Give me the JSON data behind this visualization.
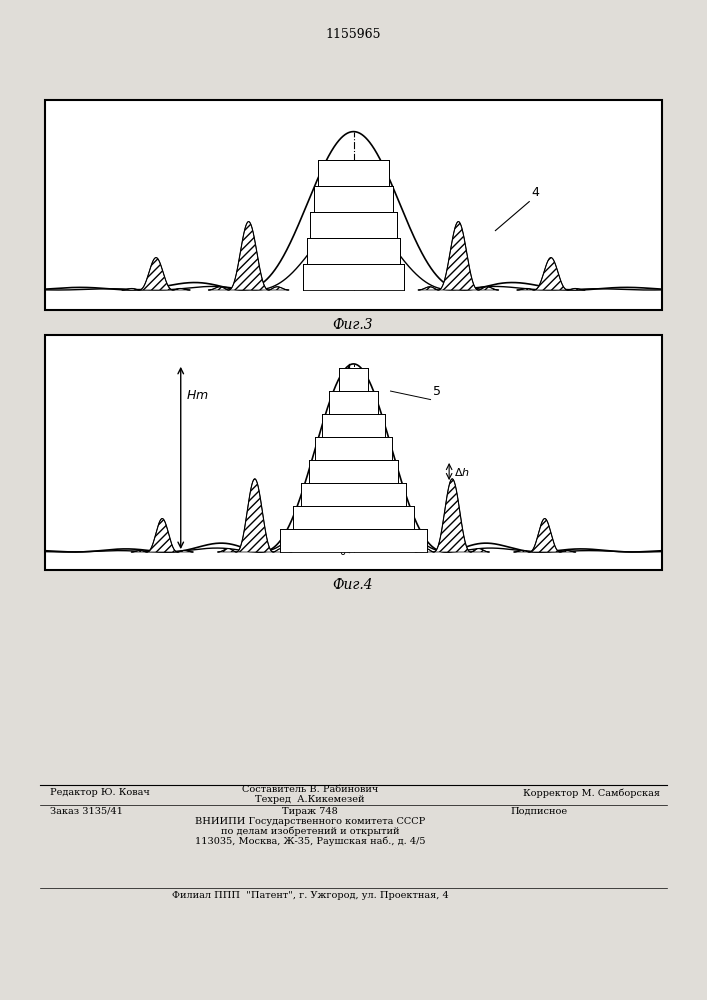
{
  "title_text": "1155965",
  "fig3_caption": "Фиг.3",
  "fig4_caption": "Фиг.4",
  "footer_line1_left": "Редактор Ю. Ковач",
  "footer_line1_center_top": "Составитель В. Рабинович",
  "footer_line1_center_bot": "Техред  А.Кикемезей",
  "footer_line1_right": "Корректор М. Самборская",
  "footer_line2_left": "Заказ 3135/41",
  "footer_line2_center": "Тираж 748",
  "footer_line2_right": "Подписное",
  "footer_line3": "ВНИИПИ Государственного комитета СССР",
  "footer_line4": "по делам изобретений и открытий",
  "footer_line5": "113035, Москва, Ж-35, Раушская наб., д. 4/5",
  "footer_bottom": "Филиал ППП  \"Патент\", г. Ужгород, ул. Проектная, 4",
  "bg_color": "#e0ddd8"
}
